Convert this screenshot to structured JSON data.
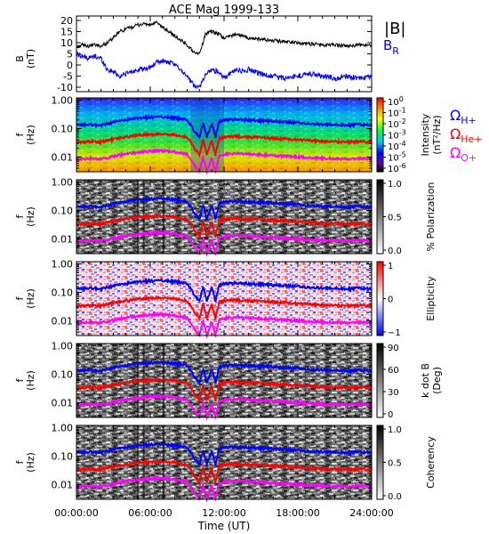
{
  "title": "ACE Mag 1999-133",
  "x_axis": {
    "label": "Time (UT)",
    "range_hours": [
      0,
      24
    ],
    "ticks": [
      {
        "hour": 0,
        "label": "00:00:00"
      },
      {
        "hour": 6,
        "label": "06:00:00"
      },
      {
        "hour": 12,
        "label": "12:00:00"
      },
      {
        "hour": 18,
        "label": "18:00:00"
      },
      {
        "hour": 24,
        "label": "24:00:00"
      }
    ]
  },
  "series_colors": {
    "blue": "#0000ff",
    "red": "#ff0000",
    "magenta": "#ff00ff",
    "black": "#000000"
  },
  "panels": {
    "bfield": {
      "ylabel": "B",
      "yunit": "(nT)",
      "ylim": [
        -12,
        22
      ],
      "ticks": [
        "20",
        "15",
        "10",
        "5",
        "0",
        "-5",
        "-10"
      ],
      "tick_values": [
        20,
        15,
        10,
        5,
        0,
        -5,
        -10
      ],
      "legend": {
        "main": "|B|",
        "br_main": "B",
        "br_sub": "R"
      }
    },
    "intensity": {
      "flabel": "f",
      "funit": "(Hz)",
      "cbar_title": "Intensity",
      "cbar_unit": "(nT²/Hz)",
      "cbar_ticks": [
        {
          "base": "10",
          "exp": "0"
        },
        {
          "base": "10",
          "exp": "-1"
        },
        {
          "base": "10",
          "exp": "-2"
        },
        {
          "base": "10",
          "exp": "-3"
        },
        {
          "base": "10",
          "exp": "-4"
        },
        {
          "base": "10",
          "exp": "-5"
        },
        {
          "base": "10",
          "exp": "-6"
        }
      ],
      "gyro_labels": [
        {
          "base": "Ω",
          "sub": "H+",
          "color": "#0000ff"
        },
        {
          "base": "Ω",
          "sub": "He+",
          "color": "#ff0000"
        },
        {
          "base": "Ω",
          "sub": "O+",
          "color": "#ff00ff"
        }
      ]
    },
    "polarization": {
      "flabel": "f",
      "funit": "(Hz)",
      "cbar_title": "% Polarization",
      "cbar_ticks": [
        "1.0",
        "0.5",
        "0.0"
      ]
    },
    "ellipticity": {
      "flabel": "f",
      "funit": "(Hz)",
      "cbar_title": "Ellipticity",
      "cbar_ticks": [
        "1",
        "0",
        "−1"
      ]
    },
    "kdotb": {
      "flabel": "f",
      "funit": "(Hz)",
      "cbar_title": "k dot B",
      "cbar_unit": "(Deg)",
      "cbar_ticks": [
        "90",
        "60",
        "30",
        "0"
      ]
    },
    "coherency": {
      "flabel": "f",
      "funit": "(Hz)",
      "cbar_title": "Coherency",
      "cbar_ticks": [
        "1.0",
        "0.5",
        "0.0"
      ]
    }
  },
  "freq_axis": {
    "ylim_hz": [
      0.003,
      1.2
    ],
    "major_ticks": [
      {
        "value": 1.0,
        "label": "1.00"
      },
      {
        "value": 0.1,
        "label": "0.10"
      },
      {
        "value": 0.01,
        "label": "0.01"
      }
    ]
  },
  "chart_data": {
    "type": "line",
    "title": "ACE Mag 1999-133",
    "xlabel": "Time (UT)",
    "x_unit": "hours UT",
    "series": [
      {
        "name": "|B|",
        "color": "#000000",
        "ylabel": "B (nT)",
        "x": [
          0,
          0.5,
          1,
          1.5,
          2,
          2.5,
          3,
          3.5,
          4,
          4.5,
          5,
          5.5,
          6,
          6.5,
          7,
          7.5,
          8,
          8.5,
          9,
          9.5,
          10,
          10.5,
          11,
          11.5,
          12,
          12.5,
          13,
          13.5,
          14,
          15,
          16,
          17,
          18,
          19,
          20,
          21,
          22,
          23,
          24
        ],
        "y": [
          8,
          9,
          8.5,
          9,
          8.5,
          10,
          12,
          15,
          16,
          17,
          18,
          18.5,
          18,
          19,
          17,
          15,
          13,
          11,
          9,
          6,
          5,
          14,
          15,
          14,
          12,
          13,
          14,
          13,
          12,
          11.5,
          11,
          10.5,
          10,
          9.5,
          9,
          9,
          8.5,
          9,
          9
        ]
      },
      {
        "name": "B_R",
        "color": "#0000ff",
        "ylabel": "B (nT)",
        "x": [
          0,
          0.5,
          1,
          1.5,
          2,
          2.5,
          3,
          3.5,
          4,
          4.5,
          5,
          5.5,
          6,
          6.5,
          7,
          7.5,
          8,
          8.5,
          9,
          9.5,
          10,
          10.5,
          11,
          11.5,
          12,
          12.5,
          13,
          13.5,
          14,
          15,
          16,
          17,
          18,
          19,
          20,
          21,
          22,
          23,
          24
        ],
        "y": [
          5,
          4,
          3,
          4,
          3,
          -2,
          -3,
          -5,
          -4,
          -3,
          -2,
          -2,
          -1,
          1,
          2,
          1,
          0,
          -2,
          -5,
          -9,
          -10,
          -4,
          -2,
          -3,
          -6,
          -4,
          -2,
          -3,
          -2,
          -4,
          -5,
          -6,
          -5,
          -4,
          -5,
          -6,
          -5,
          -6,
          -5
        ]
      },
      {
        "name": "ΩH+",
        "color": "#0000ff",
        "ylabel": "f (Hz)",
        "x": [
          0,
          1,
          2,
          3,
          4,
          5,
          6,
          7,
          8,
          9,
          9.3,
          9.6,
          10,
          10.3,
          10.6,
          11,
          11.3,
          11.6,
          12,
          13,
          14,
          15,
          16,
          17,
          18,
          19,
          20,
          21,
          22,
          23,
          24
        ],
        "y": [
          0.13,
          0.14,
          0.13,
          0.17,
          0.2,
          0.23,
          0.25,
          0.26,
          0.24,
          0.2,
          0.13,
          0.08,
          0.05,
          0.16,
          0.05,
          0.15,
          0.05,
          0.18,
          0.2,
          0.21,
          0.2,
          0.19,
          0.18,
          0.17,
          0.16,
          0.15,
          0.14,
          0.14,
          0.13,
          0.14,
          0.13
        ]
      },
      {
        "name": "ΩHe+",
        "color": "#ff0000",
        "ylabel": "f (Hz)",
        "x": [
          0,
          1,
          2,
          3,
          4,
          5,
          6,
          7,
          8,
          9,
          9.3,
          9.6,
          10,
          10.3,
          10.6,
          11,
          11.3,
          11.6,
          12,
          13,
          14,
          15,
          16,
          17,
          18,
          19,
          20,
          21,
          22,
          23,
          24
        ],
        "y": [
          0.032,
          0.035,
          0.033,
          0.042,
          0.05,
          0.058,
          0.063,
          0.065,
          0.06,
          0.05,
          0.033,
          0.02,
          0.012,
          0.04,
          0.012,
          0.038,
          0.012,
          0.045,
          0.05,
          0.053,
          0.05,
          0.048,
          0.045,
          0.043,
          0.04,
          0.038,
          0.035,
          0.035,
          0.033,
          0.035,
          0.033
        ]
      },
      {
        "name": "ΩO+",
        "color": "#ff00ff",
        "ylabel": "f (Hz)",
        "x": [
          0,
          1,
          2,
          3,
          4,
          5,
          6,
          7,
          8,
          9,
          9.3,
          9.6,
          10,
          10.3,
          10.6,
          11,
          11.3,
          11.6,
          12,
          13,
          14,
          15,
          16,
          17,
          18,
          19,
          20,
          21,
          22,
          23,
          24
        ],
        "y": [
          0.008,
          0.0088,
          0.0083,
          0.0105,
          0.0125,
          0.0145,
          0.0158,
          0.0163,
          0.015,
          0.0125,
          0.0083,
          0.005,
          0.003,
          0.01,
          0.003,
          0.0095,
          0.003,
          0.0113,
          0.0125,
          0.0133,
          0.0125,
          0.012,
          0.0113,
          0.0108,
          0.01,
          0.0095,
          0.0088,
          0.0088,
          0.0083,
          0.0088,
          0.0083
        ]
      }
    ]
  }
}
